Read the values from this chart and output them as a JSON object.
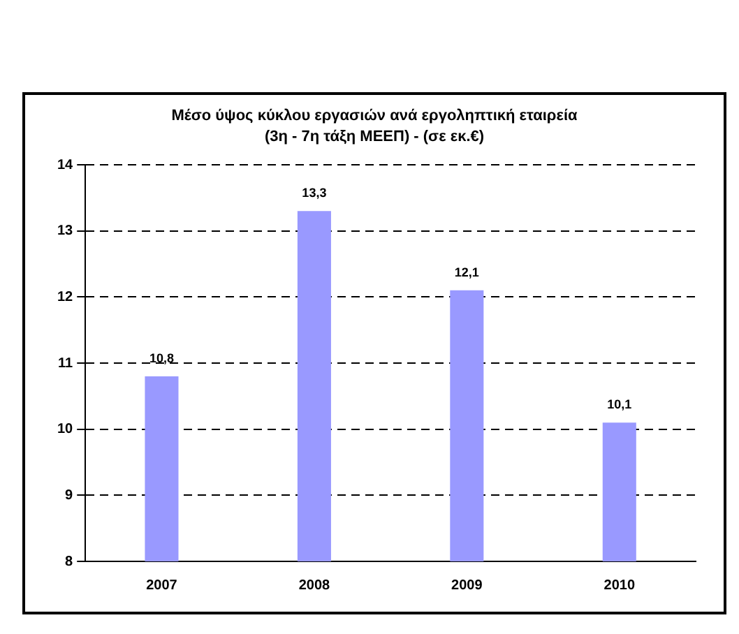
{
  "chart_data": {
    "type": "bar",
    "title": "Μέσο ύψος κύκλου εργασιών ανά εργοληπτική εταιρεία (3η - 7η τάξη ΜΕΕΠ) - (σε εκ.€)",
    "categories": [
      "2007",
      "2008",
      "2009",
      "2010"
    ],
    "values": [
      10.8,
      13.3,
      12.1,
      10.1
    ],
    "value_labels": [
      "10,8",
      "13,3",
      "12,1",
      "10,1"
    ],
    "color": "#9999ff",
    "ylim": [
      8,
      14
    ],
    "yticks": [
      8,
      9,
      10,
      11,
      12,
      13,
      14
    ],
    "grid": "y"
  }
}
